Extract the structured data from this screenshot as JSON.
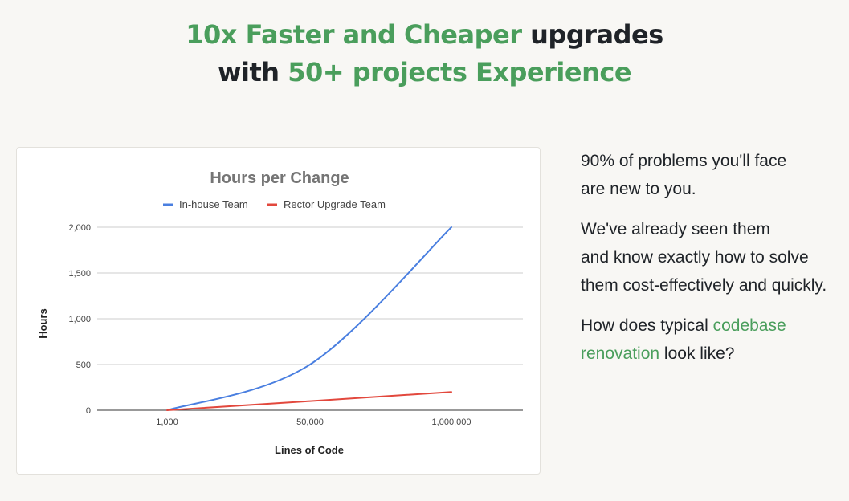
{
  "headline": {
    "line1_green": "10x Faster and Cheaper",
    "line1_dark": "upgrades",
    "line2_dark": "with",
    "line2_green": "50+ projects Experience"
  },
  "side": {
    "p1_l1": "90% of problems you'll face",
    "p1_l2": "are new to you.",
    "p2_l1": "We've already seen them",
    "p2_l2": "and know exactly how to solve",
    "p2_l3": "them cost-effectively and quickly.",
    "p3_a": "How does typical",
    "p3_link1": "codebase",
    "p3_link2": "renovation",
    "p3_b": "look like?"
  },
  "colors": {
    "accent_green": "#4a9e5c",
    "inhouse_blue": "#4a7fe0",
    "rector_red": "#e2483d"
  },
  "chart_data": {
    "type": "line",
    "title": "Hours per Change",
    "xlabel": "Lines of Code",
    "ylabel": "Hours",
    "categories": [
      "1,000",
      "50,000",
      "1,000,000"
    ],
    "ylim": [
      0,
      2000
    ],
    "y_ticks": [
      0,
      500,
      1000,
      1500,
      2000
    ],
    "y_tick_labels": [
      "0",
      "500",
      "1,000",
      "1,500",
      "2,000"
    ],
    "grid": true,
    "legend_position": "top",
    "series": [
      {
        "name": "In-house Team",
        "color": "#4a7fe0",
        "smooth": true,
        "values": [
          0,
          500,
          2000
        ]
      },
      {
        "name": "Rector Upgrade Team",
        "color": "#e2483d",
        "smooth": false,
        "values": [
          0,
          100,
          200
        ]
      }
    ]
  }
}
